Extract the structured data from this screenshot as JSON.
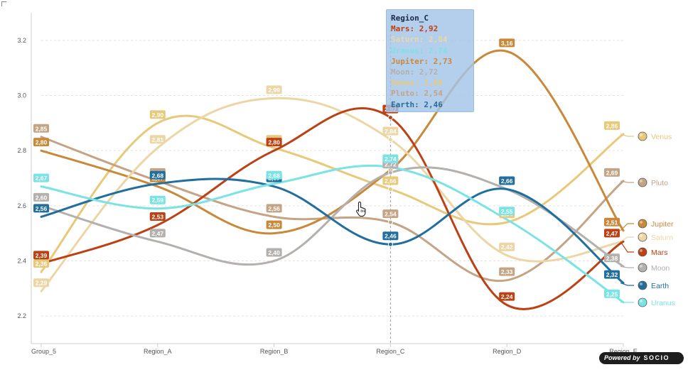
{
  "chart_data": {
    "type": "line",
    "categories": [
      "Group_5",
      "Region_A",
      "Region_B",
      "Region_C",
      "Region_D",
      "Region_E"
    ],
    "y_ticks": [
      "2.2",
      "2.4",
      "2.6",
      "2.8",
      "3.0",
      "3.2"
    ],
    "ylim": [
      2.1,
      3.3
    ],
    "grid": true,
    "legend_position": "right",
    "series": [
      {
        "name": "Venus",
        "color": "#e8c97a",
        "label_text_color": "#ffffff",
        "values": [
          2.36,
          2.9,
          2.81,
          2.66,
          2.54,
          2.86
        ],
        "labels": [
          "2,36",
          "2,90",
          "2,81",
          "2,66",
          "2,54",
          "2,86"
        ]
      },
      {
        "name": "Pluto",
        "color": "#c4a484",
        "label_text_color": "#ffffff",
        "values": [
          2.85,
          2.69,
          2.56,
          2.54,
          2.33,
          2.69
        ],
        "labels": [
          "2,85",
          "2,69",
          "2,56",
          "2,54",
          "2,33",
          "2,69"
        ]
      },
      {
        "name": "Jupiter",
        "color": "#c8893a",
        "label_text_color": "#ffffff",
        "values": [
          2.8,
          2.67,
          2.5,
          2.73,
          3.16,
          2.51
        ],
        "labels": [
          "2,80",
          "2,67",
          "2,50",
          "2,73",
          "3,16",
          "2,51"
        ]
      },
      {
        "name": "Saturn",
        "color": "#ecd6a6",
        "label_text_color": "#ffffff",
        "values": [
          2.29,
          2.81,
          2.99,
          2.84,
          2.42,
          2.47
        ],
        "labels": [
          "2,29",
          "2,81",
          "2,99",
          "2,84",
          "2,42",
          "2,47"
        ]
      },
      {
        "name": "Mars",
        "color": "#bc4114",
        "label_text_color": "#ffffff",
        "values": [
          2.39,
          2.53,
          2.8,
          2.92,
          2.24,
          2.47
        ],
        "labels": [
          "2,39",
          "2,53",
          "2,80",
          "2,92",
          "2,24",
          "2,47"
        ]
      },
      {
        "name": "Moon",
        "color": "#b3b0ad",
        "label_text_color": "#ffffff",
        "values": [
          2.6,
          2.47,
          2.4,
          2.72,
          2.66,
          2.38
        ],
        "labels": [
          "2,60",
          "2,47",
          "2,40",
          "2,72",
          "2,66",
          "2,38"
        ]
      },
      {
        "name": "Earth",
        "color": "#226e9c",
        "label_text_color": "#ffffff",
        "values": [
          2.56,
          2.68,
          2.67,
          2.46,
          2.66,
          2.32
        ],
        "labels": [
          "2,56",
          "2,68",
          "2,67",
          "2,46",
          "2,66",
          "2,32"
        ]
      },
      {
        "name": "Uranus",
        "color": "#7ae3e3",
        "label_text_color": "#ffffff",
        "values": [
          2.67,
          2.59,
          2.68,
          2.74,
          2.55,
          2.25
        ],
        "labels": [
          "2,67",
          "2,59",
          "2,68",
          "2,74",
          "2,55",
          "2,25"
        ]
      }
    ],
    "legend_order": [
      "Venus",
      "Pluto",
      "Jupiter",
      "Saturn",
      "Mars",
      "Moon",
      "Earth",
      "Uranus"
    ],
    "hover_category_index": 3
  },
  "tooltip": {
    "title": "Region_C",
    "rows": [
      {
        "text": "Mars: 2,92",
        "color": "#bc4114"
      },
      {
        "text": "Saturn: 2,84",
        "color": "#ecd6a6"
      },
      {
        "text": "Uranus: 2,74",
        "color": "#7ae3e3"
      },
      {
        "text": "Jupiter: 2,73",
        "color": "#c8893a"
      },
      {
        "text": "Moon: 2,72",
        "color": "#b3b0ad"
      },
      {
        "text": "Venus: 2,66",
        "color": "#e8c97a"
      },
      {
        "text": "Pluto: 2,54",
        "color": "#c4a484"
      },
      {
        "text": "Earth: 2,46",
        "color": "#226e9c"
      }
    ]
  },
  "credit": {
    "prefix": "Powered by",
    "brand": "SOCIO"
  }
}
